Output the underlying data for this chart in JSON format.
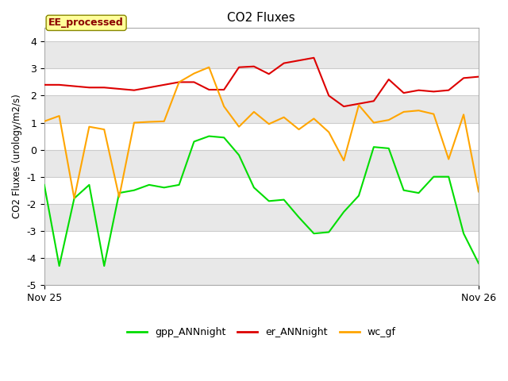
{
  "title": "CO2 Fluxes",
  "ylabel": "CO2 Fluxes (urology/m2/s)",
  "xlim_label_left": "Nov 25",
  "xlim_label_right": "Nov 26",
  "ylim": [
    -5.0,
    4.5
  ],
  "yticks": [
    -5.0,
    -4.0,
    -3.0,
    -2.0,
    -1.0,
    0.0,
    1.0,
    2.0,
    3.0,
    4.0
  ],
  "background_color": "#ffffff",
  "plot_bg_color": "#ffffff",
  "band_colors": [
    "#e8e8e8",
    "#ffffff"
  ],
  "grid_color": "#d0d0d0",
  "annotation_text": "EE_processed",
  "annotation_box_color": "#ffff99",
  "annotation_text_color": "#8b0000",
  "legend_entries": [
    "gpp_ANNnight",
    "er_ANNnight",
    "wc_gf"
  ],
  "line_colors": [
    "#00dd00",
    "#dd0000",
    "#ffa500"
  ],
  "n_points": 30,
  "gpp_ANNnight": [
    -1.3,
    -4.3,
    -1.8,
    -1.3,
    -4.3,
    -1.6,
    -1.5,
    -1.3,
    -1.4,
    -1.3,
    0.3,
    0.5,
    0.45,
    -0.2,
    -1.4,
    -1.9,
    -1.85,
    -2.5,
    -3.1,
    -3.05,
    -2.3,
    -1.7,
    0.1,
    0.05,
    -1.5,
    -1.6,
    -1.0,
    -1.0,
    -3.1,
    -4.2
  ],
  "er_ANNnight": [
    2.4,
    2.4,
    2.35,
    2.3,
    2.3,
    2.25,
    2.2,
    2.3,
    2.4,
    2.5,
    2.5,
    2.22,
    2.22,
    3.05,
    3.08,
    2.8,
    3.2,
    3.3,
    3.4,
    2.0,
    1.6,
    1.7,
    1.8,
    2.6,
    2.1,
    2.2,
    2.15,
    2.2,
    2.65,
    2.7
  ],
  "wc_gf": [
    1.05,
    1.25,
    -1.8,
    0.85,
    0.75,
    -1.75,
    1.0,
    1.03,
    1.05,
    2.5,
    2.82,
    3.05,
    1.6,
    0.85,
    1.4,
    0.95,
    1.2,
    0.75,
    1.15,
    0.65,
    -0.4,
    1.65,
    1.0,
    1.1,
    1.4,
    1.45,
    1.32,
    -0.35,
    1.3,
    -1.55
  ]
}
